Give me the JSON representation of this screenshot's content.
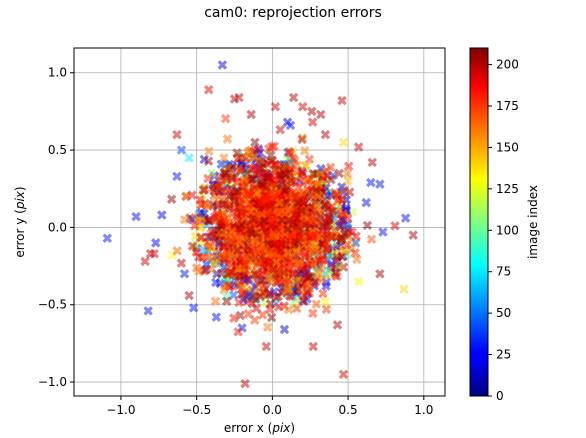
{
  "chart_data": {
    "type": "scatter",
    "title": "cam0: reprojection errors",
    "xlabel_prefix": "error x (",
    "xlabel_unit": "pix",
    "xlabel_suffix": ")",
    "ylabel_prefix": "error y (",
    "ylabel_unit": "pix",
    "ylabel_suffix": ")",
    "xlim": [
      -1.31,
      1.14
    ],
    "ylim": [
      -1.09,
      1.16
    ],
    "xticks": [
      -1.0,
      -0.5,
      0.0,
      0.5,
      1.0
    ],
    "xtick_labels": [
      "−1.0",
      "−0.5",
      "0.0",
      "0.5",
      "1.0"
    ],
    "yticks": [
      -1.0,
      -0.5,
      0.0,
      0.5,
      1.0
    ],
    "ytick_labels": [
      "−1.0",
      "−0.5",
      "0.0",
      "0.5",
      "1.0"
    ],
    "grid": true,
    "marker": "x",
    "colormap": "jet",
    "colorbar": {
      "label": "image index",
      "vmin": 0,
      "vmax": 210,
      "ticks": [
        0,
        25,
        50,
        75,
        100,
        125,
        150,
        175,
        200
      ],
      "tick_labels": [
        "0",
        "25",
        "50",
        "75",
        "100",
        "125",
        "150",
        "175",
        "200"
      ]
    },
    "points": [
      {
        "x": -0.33,
        "y": 1.05,
        "idx": 20
      },
      {
        "x": -0.42,
        "y": 0.89,
        "idx": 190
      },
      {
        "x": -0.25,
        "y": 0.83,
        "idx": 200
      },
      {
        "x": -0.22,
        "y": 0.84,
        "idx": 195
      },
      {
        "x": 0.14,
        "y": 0.84,
        "idx": 200
      },
      {
        "x": 0.46,
        "y": 0.82,
        "idx": 195
      },
      {
        "x": 0.02,
        "y": 0.78,
        "idx": 195
      },
      {
        "x": 0.2,
        "y": 0.78,
        "idx": 190
      },
      {
        "x": 0.26,
        "y": 0.75,
        "idx": 200
      },
      {
        "x": 0.32,
        "y": 0.73,
        "idx": 200
      },
      {
        "x": -0.14,
        "y": 0.73,
        "idx": 200
      },
      {
        "x": 0.1,
        "y": 0.68,
        "idx": 20
      },
      {
        "x": 0.12,
        "y": 0.66,
        "idx": 30
      },
      {
        "x": -0.63,
        "y": 0.6,
        "idx": 195
      },
      {
        "x": 0.35,
        "y": 0.6,
        "idx": 200
      },
      {
        "x": -0.6,
        "y": 0.5,
        "idx": 40
      },
      {
        "x": 0.57,
        "y": 0.52,
        "idx": 195
      },
      {
        "x": -0.55,
        "y": 0.45,
        "idx": 75
      },
      {
        "x": -0.45,
        "y": 0.44,
        "idx": 20
      },
      {
        "x": 0.66,
        "y": 0.42,
        "idx": 200
      },
      {
        "x": 0.47,
        "y": 0.55,
        "idx": 140
      },
      {
        "x": -0.63,
        "y": 0.33,
        "idx": 30
      },
      {
        "x": 0.65,
        "y": 0.29,
        "idx": 30
      },
      {
        "x": 0.71,
        "y": 0.28,
        "idx": 30
      },
      {
        "x": -0.57,
        "y": 0.2,
        "idx": 190
      },
      {
        "x": -0.73,
        "y": 0.08,
        "idx": 25
      },
      {
        "x": -0.9,
        "y": 0.07,
        "idx": 30
      },
      {
        "x": 0.62,
        "y": 0.16,
        "idx": 30
      },
      {
        "x": 0.88,
        "y": 0.06,
        "idx": 30
      },
      {
        "x": 0.73,
        "y": -0.03,
        "idx": 30
      },
      {
        "x": 0.81,
        "y": 0.01,
        "idx": 190
      },
      {
        "x": 0.93,
        "y": -0.05,
        "idx": 200
      },
      {
        "x": -1.09,
        "y": -0.07,
        "idx": 30
      },
      {
        "x": -0.77,
        "y": -0.1,
        "idx": 25
      },
      {
        "x": -0.84,
        "y": -0.22,
        "idx": 195
      },
      {
        "x": -0.78,
        "y": -0.17,
        "idx": 190
      },
      {
        "x": -0.66,
        "y": -0.18,
        "idx": 130
      },
      {
        "x": -0.58,
        "y": -0.3,
        "idx": 30
      },
      {
        "x": 0.71,
        "y": -0.3,
        "idx": 200
      },
      {
        "x": 0.87,
        "y": -0.4,
        "idx": 140
      },
      {
        "x": -0.82,
        "y": -0.54,
        "idx": 30
      },
      {
        "x": -0.55,
        "y": -0.44,
        "idx": 200
      },
      {
        "x": -0.52,
        "y": -0.52,
        "idx": 30
      },
      {
        "x": -0.37,
        "y": -0.58,
        "idx": 30
      },
      {
        "x": -0.2,
        "y": -0.65,
        "idx": 30
      },
      {
        "x": 0.08,
        "y": -0.66,
        "idx": 20
      },
      {
        "x": 0.43,
        "y": -0.63,
        "idx": 200
      },
      {
        "x": -0.04,
        "y": -0.77,
        "idx": 195
      },
      {
        "x": 0.27,
        "y": -0.77,
        "idx": 195
      },
      {
        "x": -0.18,
        "y": -1.01,
        "idx": 195
      },
      {
        "x": 0.47,
        "y": -0.95,
        "idx": 195
      },
      {
        "x": 0.57,
        "y": -0.35,
        "idx": 130
      },
      {
        "x": -0.45,
        "y": -0.15,
        "idx": 60
      },
      {
        "x": 0.5,
        "y": 0.3,
        "idx": 145
      },
      {
        "x": -0.4,
        "y": 0.35,
        "idx": 110
      },
      {
        "x": 0.35,
        "y": -0.48,
        "idx": 135
      },
      {
        "x": -0.3,
        "y": -0.45,
        "idx": 95
      },
      {
        "x": 0.55,
        "y": -0.1,
        "idx": 40
      },
      {
        "x": -0.58,
        "y": 0.05,
        "idx": 160
      },
      {
        "x": 0.2,
        "y": 0.58,
        "idx": 150
      },
      {
        "x": 0.05,
        "y": 0.33,
        "idx": 205
      },
      {
        "x": -0.06,
        "y": 0.1,
        "idx": 208
      },
      {
        "x": 0.12,
        "y": -0.12,
        "idx": 202
      },
      {
        "x": -0.2,
        "y": -0.05,
        "idx": 198
      },
      {
        "x": 0.25,
        "y": 0.12,
        "idx": 206
      }
    ],
    "blob": {
      "center_x": 0.0,
      "center_y": 0.0,
      "spread_x": 0.2,
      "spread_y": 0.2,
      "count": 1400,
      "idx_min": 150,
      "idx_max": 210
    }
  }
}
